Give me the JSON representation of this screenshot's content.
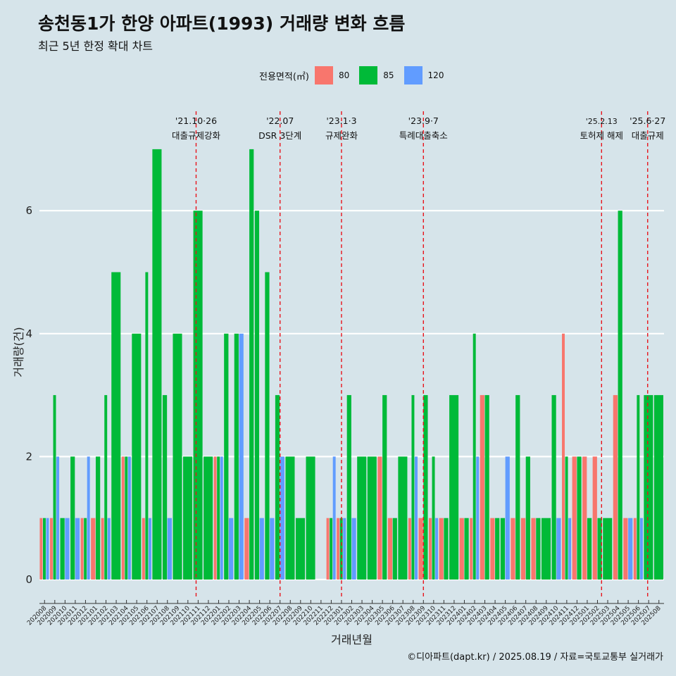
{
  "title": "송천동1가 한양 아파트(1993) 거래량 변화 흐름",
  "subtitle": "최근 5년 한정 확대 차트",
  "footer": "©디아파트(dapt.kr) / 2025.08.19 / 자료=국토교통부 실거래가",
  "legend": {
    "title": "전용면적(㎡)",
    "items": [
      {
        "label": "80",
        "color": "#f8766d"
      },
      {
        "label": "85",
        "color": "#00ba38"
      },
      {
        "label": "120",
        "color": "#619cff"
      }
    ]
  },
  "chart_data": {
    "type": "bar",
    "xlabel": "거래년월",
    "ylabel": "거래량(건)",
    "ylim": [
      0,
      7
    ],
    "yticks": [
      0,
      2,
      4,
      6
    ],
    "grid": true,
    "categories": [
      "202008",
      "202009",
      "202010",
      "202011",
      "202012",
      "202101",
      "202102",
      "202103",
      "202104",
      "202105",
      "202106",
      "202107",
      "202108",
      "202109",
      "202110",
      "202111",
      "202112",
      "202201",
      "202202",
      "202203",
      "202204",
      "202205",
      "202206",
      "202207",
      "202208",
      "202209",
      "202210",
      "202211",
      "202212",
      "202301",
      "202302",
      "202303",
      "202304",
      "202305",
      "202306",
      "202307",
      "202308",
      "202309",
      "202310",
      "202311",
      "202312",
      "202401",
      "202402",
      "202403",
      "202404",
      "202405",
      "202406",
      "202407",
      "202408",
      "202409",
      "202410",
      "202411",
      "202412",
      "202501",
      "202502",
      "202503",
      "202504",
      "202505",
      "202506",
      "202507",
      "202508"
    ],
    "series": [
      {
        "name": "80",
        "color": "#f8766d",
        "values": [
          1,
          1,
          0,
          0,
          1,
          1,
          1,
          0,
          2,
          0,
          1,
          0,
          0,
          0,
          0,
          0,
          0,
          2,
          0,
          0,
          1,
          0,
          0,
          0,
          0,
          0,
          0,
          0,
          1,
          1,
          0,
          0,
          0,
          2,
          1,
          0,
          1,
          1,
          1,
          1,
          0,
          1,
          1,
          3,
          1,
          0,
          1,
          1,
          1,
          0,
          0,
          4,
          2,
          2,
          2,
          0,
          3,
          1,
          1,
          0,
          0
        ]
      },
      {
        "name": "85",
        "color": "#00ba38",
        "values": [
          1,
          3,
          1,
          2,
          1,
          2,
          3,
          5,
          2,
          4,
          5,
          7,
          3,
          4,
          2,
          6,
          2,
          2,
          4,
          4,
          7,
          6,
          5,
          3,
          2,
          1,
          2,
          0,
          1,
          1,
          3,
          2,
          2,
          3,
          1,
          2,
          3,
          3,
          2,
          1,
          3,
          1,
          4,
          3,
          1,
          1,
          3,
          2,
          1,
          1,
          3,
          2,
          2,
          1,
          1,
          1,
          6,
          0,
          3,
          3,
          3
        ]
      },
      {
        "name": "120",
        "color": "#619cff",
        "values": [
          1,
          2,
          1,
          1,
          2,
          0,
          1,
          0,
          2,
          0,
          1,
          0,
          1,
          0,
          0,
          0,
          0,
          2,
          1,
          4,
          0,
          1,
          1,
          2,
          0,
          0,
          0,
          0,
          2,
          1,
          1,
          0,
          0,
          0,
          0,
          0,
          2,
          0,
          1,
          0,
          0,
          0,
          2,
          0,
          0,
          2,
          0,
          0,
          0,
          0,
          1,
          1,
          0,
          0,
          0,
          0,
          0,
          1,
          1,
          0,
          0
        ]
      }
    ],
    "last_category_label": "202508",
    "x_tick_labels": [
      "202008",
      "202009",
      "202010",
      "202011",
      "202012",
      "202101",
      "202102",
      "202103",
      "202104",
      "202105",
      "202106",
      "202107",
      "202108",
      "202109",
      "202110",
      "202111",
      "202112",
      "202201",
      "202202",
      "202203",
      "202204",
      "202205",
      "202206",
      "202207",
      "202208",
      "202209",
      "202210",
      "202211",
      "202212",
      "202301",
      "202302",
      "202303",
      "202304",
      "202305",
      "202306",
      "202307",
      "202308",
      "202309",
      "202310",
      "202311",
      "202312",
      "202401",
      "202402",
      "202403",
      "202404",
      "202405",
      "202406",
      "202407",
      "202408",
      "202409",
      "202410",
      "202411",
      "202412",
      "202501",
      "202502",
      "202503",
      "202504",
      "202505",
      "202506",
      "202507",
      "202508"
    ],
    "annotations": [
      {
        "date": "'21.10·26",
        "text": "대출규제강화",
        "month_index": 14.8
      },
      {
        "date": "'22.07",
        "text": "DSR 3단계",
        "month_index": 23
      },
      {
        "date": "'23.1·3",
        "text": "규제완화",
        "month_index": 29
      },
      {
        "date": "'23.9·7",
        "text": "특례대출축소",
        "month_index": 37
      },
      {
        "date": "'25.2.13",
        "text": "토허제 해제",
        "month_index": 54.4
      },
      {
        "date": "'25.6·27",
        "text": "대출규제",
        "month_index": 58.9
      }
    ]
  }
}
